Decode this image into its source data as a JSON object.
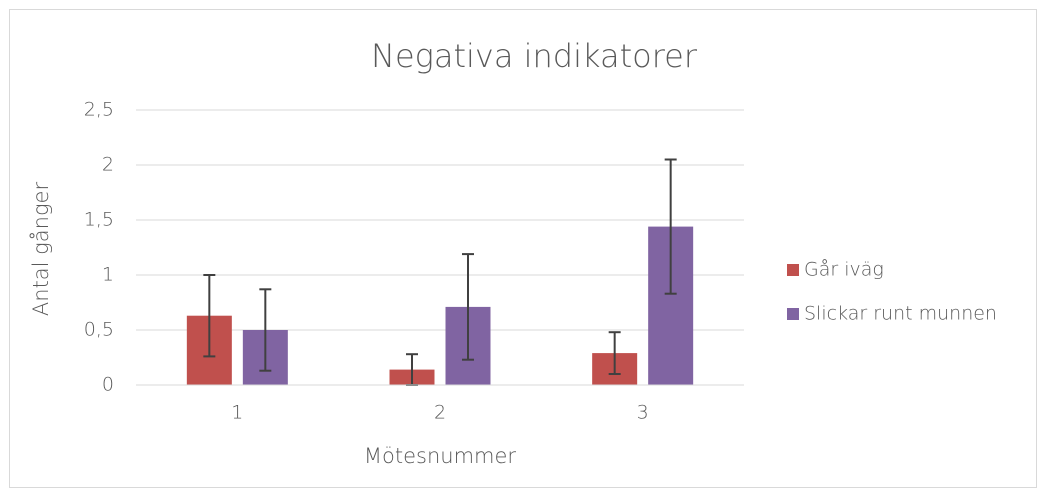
{
  "chart_data": {
    "type": "bar",
    "title": "Negativa indikatorer",
    "x_label": "Mötesnummer",
    "y_label": "Antal gånger",
    "categories": [
      "1",
      "2",
      "3"
    ],
    "series": [
      {
        "name": "Går iväg",
        "color": "#c0504d",
        "values": [
          0.63,
          0.14,
          0.29
        ],
        "errors": [
          0.37,
          0.14,
          0.19
        ]
      },
      {
        "name": "Slickar runt munnen",
        "color": "#8064a2",
        "values": [
          0.5,
          0.71,
          1.44
        ],
        "errors": [
          0.37,
          0.48,
          0.61
        ]
      }
    ],
    "ylim": [
      0,
      2.5
    ],
    "yticks": [
      0,
      {
        "value": 0.5,
        "label": "0,5"
      },
      1,
      {
        "value": 1.5,
        "label": "1,5"
      },
      2,
      {
        "value": 2.5,
        "label": "2,5"
      }
    ],
    "grid": true,
    "legend": "right"
  }
}
